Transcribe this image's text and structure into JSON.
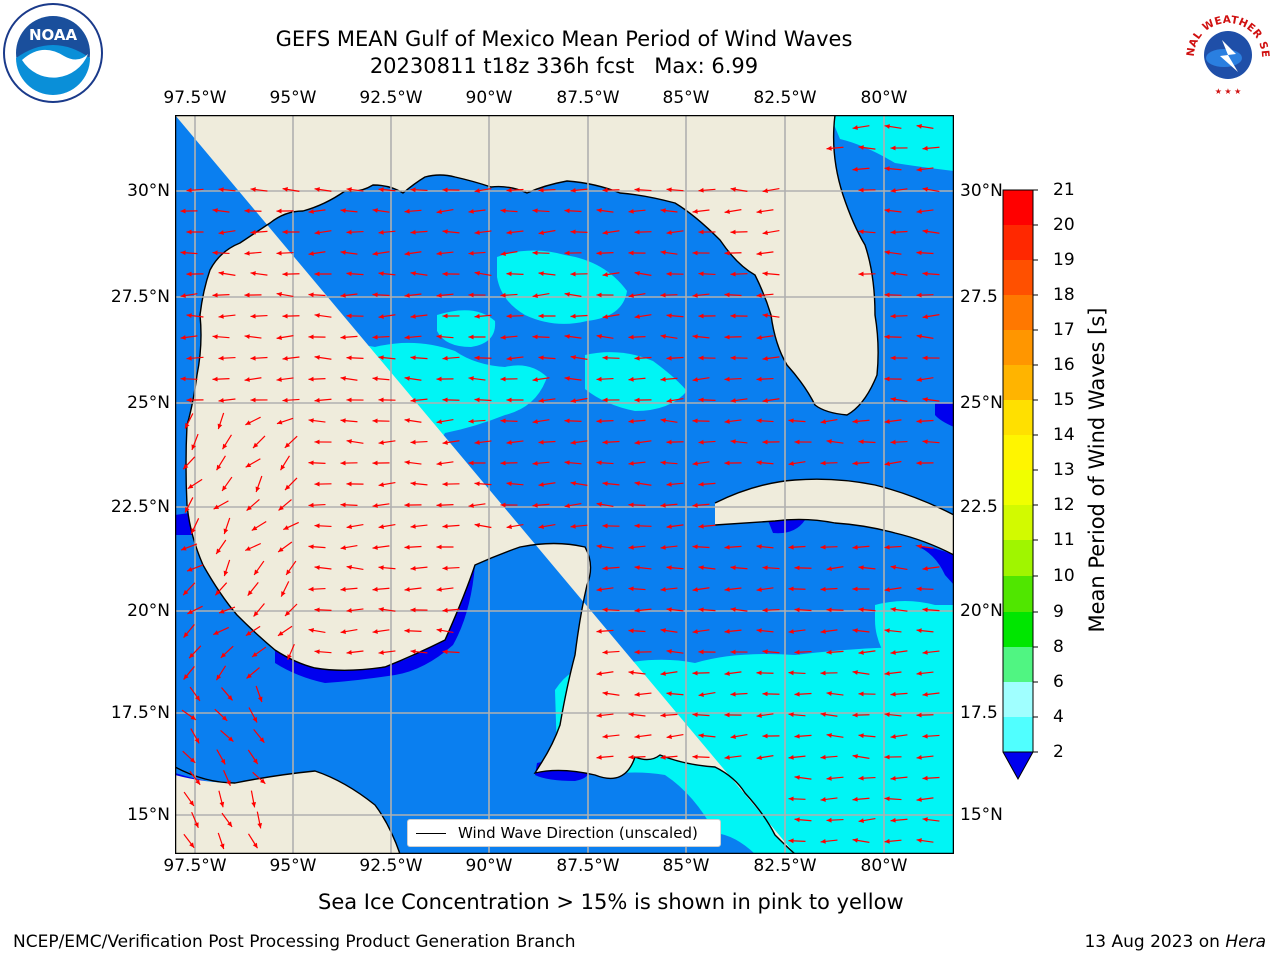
{
  "header": {
    "title_line1": "GEFS MEAN Gulf of Mexico Mean Period of Wind Waves",
    "title_line2": "20230811 t18z 336h fcst   Max: 6.99"
  },
  "logos": {
    "left": {
      "name": "noaa-logo",
      "text": "NOAA"
    },
    "right": {
      "name": "nws-logo",
      "text": "NATIONAL WEATHER SERVICE"
    }
  },
  "map": {
    "lon_ticks": [
      "97.5°W",
      "95°W",
      "92.5°W",
      "90°W",
      "87.5°W",
      "85°W",
      "82.5°W",
      "80°W"
    ],
    "lat_ticks_left": [
      "30°N",
      "27.5°N",
      "25°N",
      "22.5°N",
      "20°N",
      "17.5°N",
      "15°N"
    ],
    "lat_ticks_right": [
      "30°N",
      "27.5",
      "25°N",
      "22.5",
      "20°N",
      "17.5",
      "15°N"
    ],
    "colors": {
      "land": "#efecdc",
      "lvl_lt2": "#0000ee",
      "lvl_2_4": "#0a7ff0",
      "lvl_4_6": "#00f5f5",
      "coast": "#000000",
      "grid": "#b0b0b0",
      "arrow": "#ff0000"
    }
  },
  "legend": {
    "line_label": "Wind Wave Direction (unscaled)"
  },
  "colorbar": {
    "label": "Mean Period of Wind Waves [s]",
    "ticks": [
      "21",
      "20",
      "19",
      "18",
      "17",
      "16",
      "15",
      "14",
      "13",
      "12",
      "11",
      "10",
      "9",
      "8",
      "6",
      "4",
      "2"
    ],
    "band_colors": [
      "#ff0000",
      "#ff2800",
      "#ff5000",
      "#ff7800",
      "#ff9600",
      "#ffb400",
      "#ffe000",
      "#fff500",
      "#f0ff00",
      "#d2fa00",
      "#a0f500",
      "#50e600",
      "#00e600",
      "#50f582",
      "#a0ffff",
      "#50ffff",
      "#00f5f5",
      "#0a7ff0"
    ],
    "under_color": "#0000ee"
  },
  "footer": {
    "note": "Sea Ice Concentration > 15% is shown in pink to yellow",
    "credit": "NCEP/EMC/Verification Post Processing Product Generation Branch",
    "date": "13 Aug 2023 on ",
    "machine": "Hera"
  }
}
